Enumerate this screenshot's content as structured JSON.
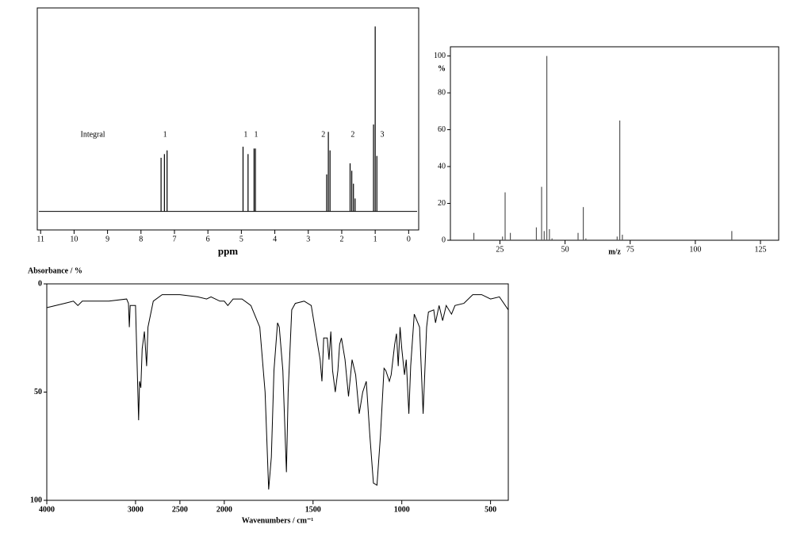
{
  "chart_data": [
    {
      "type": "stem",
      "xlabel": "ppm",
      "color": "#000000",
      "xlim": [
        11.1,
        -0.3
      ],
      "ylim": [
        -10,
        110
      ],
      "xticks": [
        11,
        10,
        9,
        8,
        7,
        6,
        5,
        4,
        3,
        2,
        1,
        0
      ],
      "x": [
        7.4,
        7.3,
        7.22,
        4.95,
        4.8,
        4.62,
        4.58,
        2.45,
        2.4,
        2.35,
        1.75,
        1.7,
        1.65,
        1.6,
        1.05,
        1.0,
        0.95
      ],
      "values": [
        29,
        31,
        33,
        35,
        31,
        34,
        34,
        20,
        43,
        33,
        26,
        22,
        15,
        7,
        47,
        100,
        30
      ],
      "annotations": [
        {
          "text": "Integral",
          "x": 9.44
        },
        {
          "text": "1",
          "x": 7.28
        },
        {
          "text": "1",
          "x": 4.87
        },
        {
          "text": "1",
          "x": 4.56
        },
        {
          "text": "2",
          "x": 2.55
        },
        {
          "text": "2",
          "x": 1.67
        },
        {
          "text": "3",
          "x": 0.79
        }
      ]
    },
    {
      "type": "stem",
      "xlabel": "m/z",
      "ylabel": "%",
      "color": "#555555",
      "xlim": [
        6,
        132
      ],
      "ylim": [
        0,
        105
      ],
      "xticks": [
        25,
        50,
        75,
        100,
        125
      ],
      "yticks": [
        0,
        20,
        40,
        60,
        80,
        100
      ],
      "x": [
        15,
        26,
        27,
        29,
        39,
        41,
        42,
        43,
        44,
        45,
        55,
        57,
        58,
        70,
        71,
        72,
        114
      ],
      "values": [
        4,
        2,
        26,
        4,
        7,
        29,
        5,
        100,
        6,
        1,
        4,
        18,
        1,
        2,
        65,
        3,
        5
      ]
    },
    {
      "type": "line",
      "xlabel": "Wavenumbers / cm⁻¹",
      "ylabel": "Absorbance / %",
      "color": "#000000",
      "xlim": [
        4000,
        400
      ],
      "ylim": [
        0,
        100
      ],
      "y_reversed": true,
      "x_scale_break": 2000,
      "xticks": [
        4000,
        3000,
        2500,
        2000,
        1500,
        1000,
        500
      ],
      "yticks": [
        0,
        50,
        100
      ],
      "x": [
        4000,
        3800,
        3700,
        3650,
        3600,
        3300,
        3100,
        3080,
        3070,
        3060,
        3000,
        2990,
        2965,
        2955,
        2940,
        2925,
        2900,
        2875,
        2860,
        2800,
        2700,
        2500,
        2300,
        2200,
        2150,
        2050,
        2000,
        1980,
        1950,
        1900,
        1850,
        1800,
        1770,
        1750,
        1735,
        1720,
        1700,
        1690,
        1670,
        1650,
        1640,
        1620,
        1600,
        1550,
        1510,
        1480,
        1460,
        1450,
        1440,
        1420,
        1410,
        1400,
        1390,
        1375,
        1360,
        1350,
        1340,
        1320,
        1300,
        1280,
        1260,
        1240,
        1220,
        1200,
        1180,
        1160,
        1140,
        1120,
        1100,
        1090,
        1070,
        1060,
        1040,
        1030,
        1020,
        1010,
        1000,
        985,
        975,
        960,
        950,
        930,
        900,
        880,
        870,
        860,
        850,
        820,
        810,
        790,
        770,
        750,
        720,
        700,
        650,
        600,
        550,
        500,
        450,
        400
      ],
      "values": [
        11,
        9,
        8,
        10,
        8,
        8,
        7,
        9,
        20,
        10,
        10,
        25,
        63,
        45,
        48,
        30,
        22,
        38,
        20,
        8,
        5,
        5,
        6,
        7,
        6,
        8,
        8,
        10,
        7,
        7,
        10,
        20,
        50,
        95,
        80,
        40,
        18,
        20,
        40,
        87,
        50,
        12,
        9,
        8,
        10,
        25,
        35,
        45,
        25,
        25,
        35,
        22,
        40,
        50,
        40,
        28,
        25,
        35,
        52,
        35,
        42,
        60,
        50,
        45,
        70,
        92,
        93,
        70,
        39,
        40,
        45,
        42,
        28,
        23,
        38,
        20,
        30,
        42,
        35,
        60,
        38,
        14,
        20,
        60,
        40,
        20,
        13,
        12,
        18,
        10,
        17,
        10,
        14,
        10,
        9,
        5,
        5,
        7,
        6,
        12
      ]
    }
  ]
}
